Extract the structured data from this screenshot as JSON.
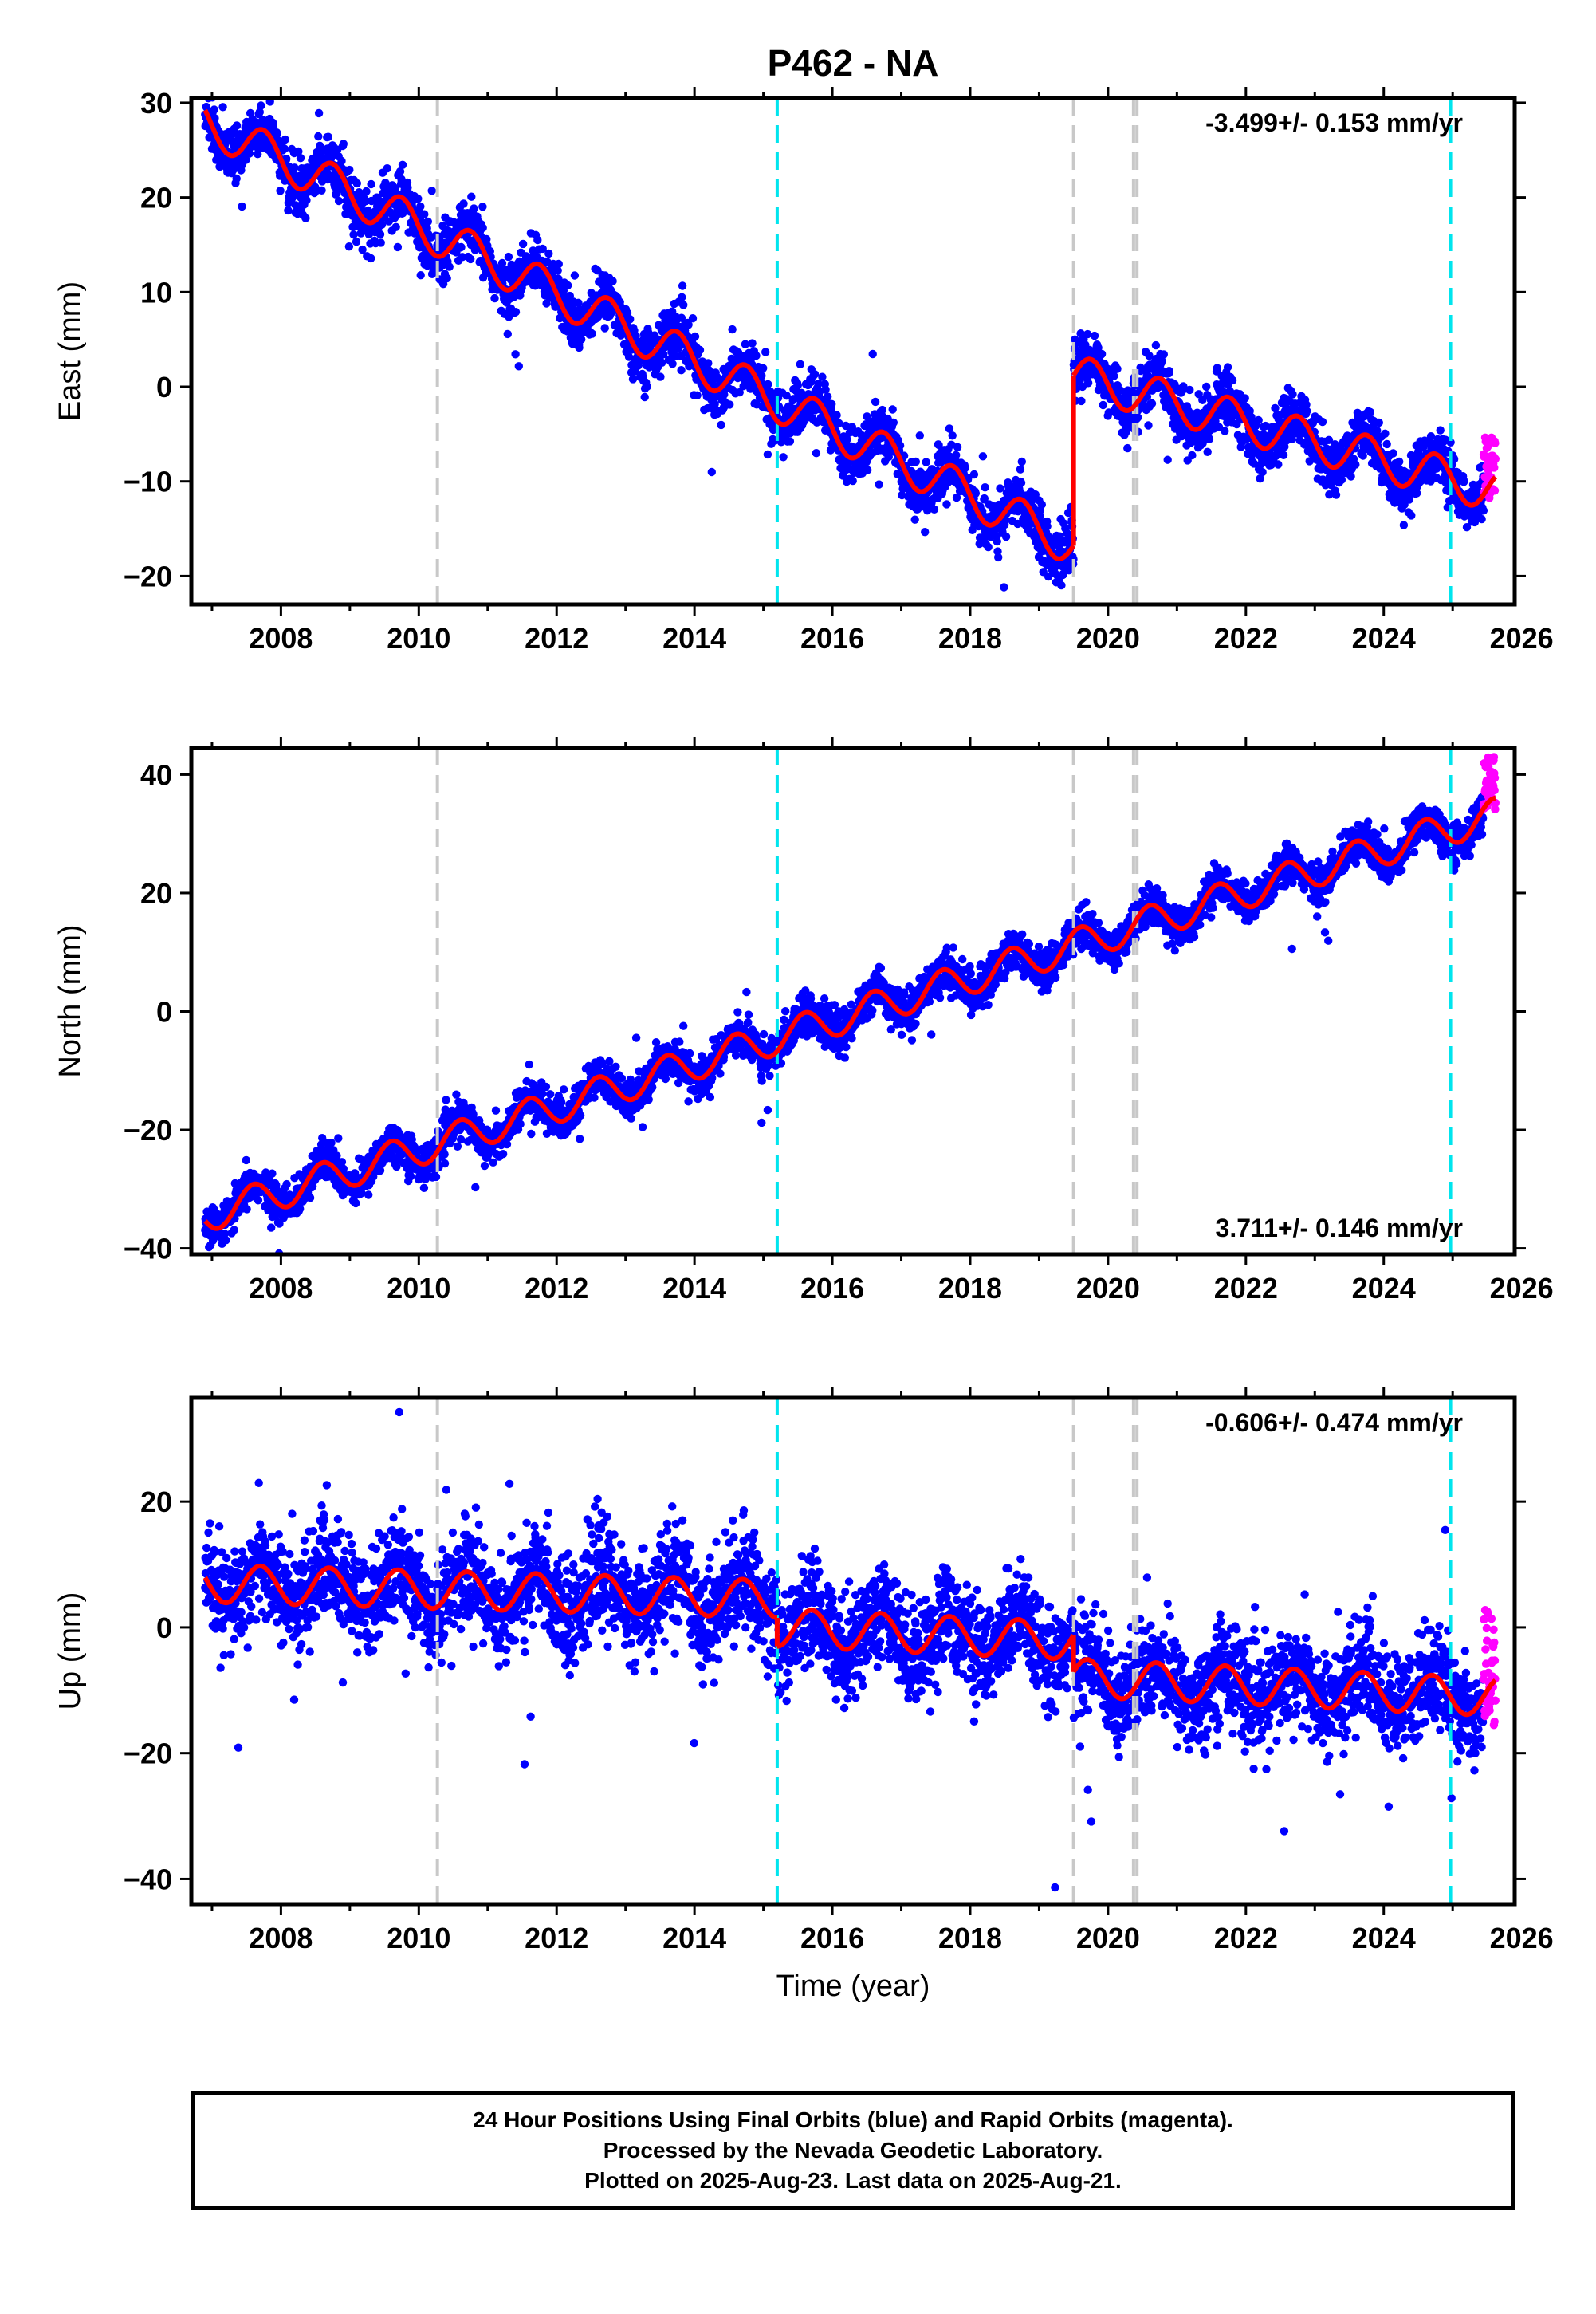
{
  "title": "P462 - NA",
  "footer": {
    "line1": "24 Hour Positions Using Final Orbits (blue) and Rapid Orbits (magenta).",
    "line2": "Processed by the Nevada Geodetic Laboratory.",
    "line3": "Plotted on 2025-Aug-23. Last data on 2025-Aug-21."
  },
  "colors": {
    "final_orbits": "#0000ff",
    "rapid_orbits": "#ff00ff",
    "model_fit": "#ff0000",
    "equipment_change_line": "#c8c8c8",
    "earthquake_line": "#00e5ee"
  },
  "chart_data": [
    {
      "type": "scatter",
      "panel": "east",
      "ylabel": "East (mm)",
      "xlabel": "",
      "xlim": [
        2006.7,
        2025.9
      ],
      "ylim": [
        -23,
        30.5
      ],
      "x_ticks": [
        2008,
        2010,
        2012,
        2014,
        2016,
        2018,
        2020,
        2022,
        2024,
        2026
      ],
      "y_ticks": [
        30,
        20,
        10,
        0,
        -10,
        -20
      ],
      "rate_label": "-3.499+/- 0.153 mm/yr",
      "rate_position": "top-right",
      "grid": false,
      "model": {
        "segments": [
          {
            "start": 2006.9,
            "end": 2019.5,
            "offset_at_2019_5": -16.8,
            "rate": -3.55
          },
          {
            "start": 2019.5,
            "end": 2025.62,
            "offset_at_2019_5": 1.2,
            "rate": -2.0
          }
        ],
        "seasonal_amplitude": 2.2,
        "seasonal_peak": 0.75,
        "scatter_sd": 1.4
      },
      "rapid_span": [
        2025.45,
        2025.62
      ],
      "rapid_range": [
        -12,
        -5
      ],
      "vertical_lines": [
        {
          "x": 2010.27,
          "kind": "equipment"
        },
        {
          "x": 2015.2,
          "kind": "earthquake"
        },
        {
          "x": 2019.5,
          "kind": "equipment"
        },
        {
          "x": 2020.37,
          "kind": "equipment"
        },
        {
          "x": 2020.42,
          "kind": "equipment"
        },
        {
          "x": 2024.97,
          "kind": "earthquake"
        }
      ]
    },
    {
      "type": "scatter",
      "panel": "north",
      "ylabel": "North (mm)",
      "xlabel": "",
      "xlim": [
        2006.7,
        2025.9
      ],
      "ylim": [
        -41,
        44.5
      ],
      "x_ticks": [
        2008,
        2010,
        2012,
        2014,
        2016,
        2018,
        2020,
        2022,
        2024,
        2026
      ],
      "y_ticks": [
        40,
        20,
        0,
        -20,
        -40
      ],
      "rate_label": "3.711+/- 0.146 mm/yr",
      "rate_position": "bottom-right",
      "grid": false,
      "model": {
        "segments": [
          {
            "start": 2006.9,
            "end": 2025.62,
            "value_at_2006_9": -34.5,
            "rate": 3.62
          }
        ],
        "seasonal_amplitude": 2.8,
        "seasonal_peak": 0.6,
        "scatter_sd": 1.6
      },
      "rapid_span": [
        2025.45,
        2025.62
      ],
      "rapid_range": [
        34,
        43
      ],
      "vertical_lines": [
        {
          "x": 2010.27,
          "kind": "equipment"
        },
        {
          "x": 2015.2,
          "kind": "earthquake"
        },
        {
          "x": 2019.5,
          "kind": "equipment"
        },
        {
          "x": 2020.37,
          "kind": "equipment"
        },
        {
          "x": 2020.42,
          "kind": "equipment"
        },
        {
          "x": 2024.97,
          "kind": "earthquake"
        }
      ]
    },
    {
      "type": "scatter",
      "panel": "up",
      "ylabel": "Up (mm)",
      "xlabel": "Time (year)",
      "xlim": [
        2006.7,
        2025.9
      ],
      "ylim": [
        -44,
        36.5
      ],
      "x_ticks": [
        2008,
        2010,
        2012,
        2014,
        2016,
        2018,
        2020,
        2022,
        2024,
        2026
      ],
      "y_ticks": [
        20,
        0,
        -20,
        -40
      ],
      "rate_label": "-0.606+/- 0.474 mm/yr",
      "rate_position": "top-right",
      "grid": false,
      "model": {
        "segments": [
          {
            "start": 2006.9,
            "end": 2015.2,
            "value_at_start": 7,
            "rate": -0.3
          },
          {
            "start": 2015.2,
            "end": 2019.5,
            "value_at_start": 0,
            "rate": -0.5
          },
          {
            "start": 2019.5,
            "end": 2025.62,
            "value_at_start": -8,
            "rate": -0.5
          }
        ],
        "seasonal_amplitude": 3.0,
        "seasonal_peak": 0.7,
        "scatter_sd": 4.0
      },
      "rapid_span": [
        2025.45,
        2025.62
      ],
      "rapid_range": [
        -16,
        4
      ],
      "vertical_lines": [
        {
          "x": 2010.27,
          "kind": "equipment"
        },
        {
          "x": 2015.2,
          "kind": "earthquake"
        },
        {
          "x": 2019.5,
          "kind": "equipment"
        },
        {
          "x": 2020.37,
          "kind": "equipment"
        },
        {
          "x": 2020.42,
          "kind": "equipment"
        },
        {
          "x": 2024.97,
          "kind": "earthquake"
        }
      ]
    }
  ]
}
